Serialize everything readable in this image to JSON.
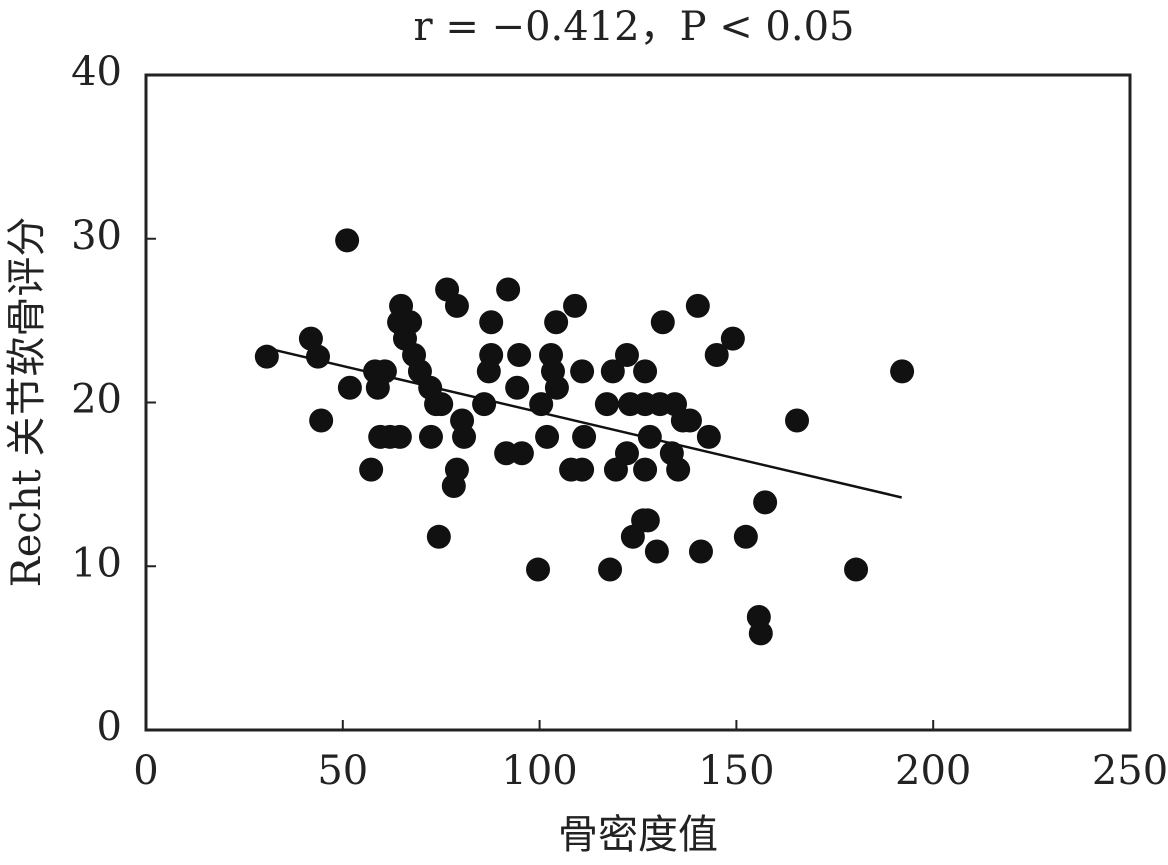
{
  "chart_data": {
    "type": "scatter",
    "title": "r = −0.412，P < 0.05",
    "x_label": "骨密度值",
    "y_label": "Recht 关节软骨评分",
    "color": "#111111",
    "x": [
      30.7,
      51.1,
      41.9,
      43.7,
      44.5,
      51.8,
      58.2,
      60.7,
      57.2,
      59.5,
      62,
      64.5,
      58.9,
      64.8,
      64.3,
      67.1,
      65.8,
      68.1,
      69.6,
      72.2,
      73.7,
      75,
      72.4,
      74.4,
      76.5,
      79,
      79,
      78.2,
      80.3,
      80.8,
      85.9,
      87.7,
      87.7,
      87.1,
      92,
      94.8,
      94.3,
      91.5,
      95.5,
      99.6,
      100.4,
      101.9,
      102.9,
      103.4,
      104.4,
      104.2,
      109,
      108,
      110.8,
      111.3,
      110.8,
      117.9,
      117.1,
      118.6,
      119.4,
      122.2,
      123,
      126.8,
      130.6,
      134.4,
      122.2,
      123.7,
      126.3,
      127.5,
      126.8,
      126.8,
      128,
      129.8,
      131.3,
      133.6,
      135.2,
      136.4,
      138.2,
      140.2,
      141,
      143,
      145,
      149.1,
      152.4,
      155.7,
      156.2,
      157.3,
      165.4,
      180.4,
      192.1
    ],
    "values": [
      22.8,
      29.9,
      23.9,
      22.8,
      18.9,
      20.9,
      21.9,
      21.9,
      15.9,
      17.9,
      17.9,
      17.9,
      20.9,
      25.9,
      24.9,
      24.9,
      23.9,
      22.9,
      21.9,
      20.9,
      19.9,
      19.9,
      17.9,
      11.8,
      26.9,
      25.9,
      15.9,
      14.9,
      18.9,
      17.9,
      19.9,
      24.9,
      22.9,
      21.9,
      26.9,
      22.9,
      20.9,
      16.9,
      16.9,
      9.8,
      19.9,
      17.9,
      22.9,
      21.9,
      20.9,
      24.9,
      25.9,
      15.9,
      15.9,
      17.9,
      21.9,
      9.8,
      19.9,
      21.9,
      15.9,
      22.9,
      19.9,
      19.9,
      19.9,
      19.9,
      16.9,
      11.8,
      12.8,
      12.8,
      21.9,
      15.9,
      17.9,
      10.9,
      24.9,
      16.9,
      15.9,
      18.9,
      18.9,
      25.9,
      10.9,
      17.9,
      22.9,
      23.9,
      11.8,
      6.9,
      5.9,
      13.9,
      18.9,
      9.8,
      21.9
    ],
    "trendline": {
      "x": [
        31,
        192
      ],
      "values": [
        23.3,
        14.2
      ]
    },
    "xlim": [
      0,
      250
    ],
    "xticks": [
      0,
      50,
      100,
      150,
      200,
      250
    ],
    "ylim": [
      0,
      40
    ],
    "yticks": [
      0,
      10,
      20,
      30,
      40
    ],
    "grid": false
  }
}
